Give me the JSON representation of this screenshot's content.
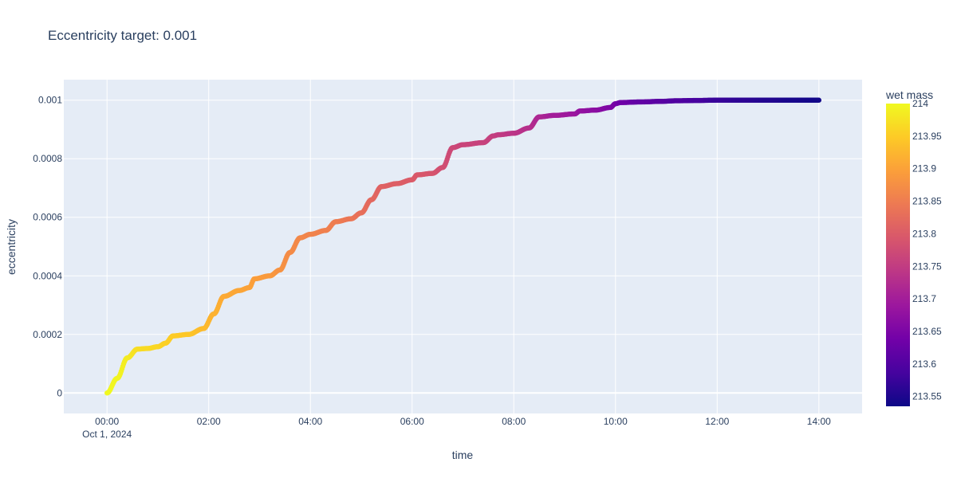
{
  "chart_data": {
    "type": "scatter",
    "title": "Eccentricity target: 0.001",
    "xlabel": "time",
    "ylabel": "eccentricity",
    "x_range_hours": [
      -0.85,
      14.85
    ],
    "ylim": [
      -7e-05,
      0.00107
    ],
    "grid": true,
    "x_ticks": [
      {
        "value": 0,
        "label": "00:00",
        "sublabel": "Oct 1, 2024"
      },
      {
        "value": 2,
        "label": "02:00",
        "sublabel": ""
      },
      {
        "value": 4,
        "label": "04:00",
        "sublabel": ""
      },
      {
        "value": 6,
        "label": "06:00",
        "sublabel": ""
      },
      {
        "value": 8,
        "label": "08:00",
        "sublabel": ""
      },
      {
        "value": 10,
        "label": "10:00",
        "sublabel": ""
      },
      {
        "value": 12,
        "label": "12:00",
        "sublabel": ""
      },
      {
        "value": 14,
        "label": "14:00",
        "sublabel": ""
      }
    ],
    "y_ticks": [
      {
        "value": 0,
        "label": "0"
      },
      {
        "value": 0.0002,
        "label": "0.0002"
      },
      {
        "value": 0.0004,
        "label": "0.0004"
      },
      {
        "value": 0.0006,
        "label": "0.0006"
      },
      {
        "value": 0.0008,
        "label": "0.0008"
      },
      {
        "value": 0.001,
        "label": "0.001"
      }
    ],
    "color_axis": {
      "title": "wet mass",
      "min": 213.535,
      "max": 214.0,
      "colorscale": [
        "#0d0887",
        "#46039f",
        "#7201a8",
        "#9c179e",
        "#bd3786",
        "#d8576b",
        "#ed7953",
        "#fb9f3a",
        "#fdca26",
        "#f0f921"
      ],
      "ticks": [
        {
          "value": 214,
          "label": "214"
        },
        {
          "value": 213.95,
          "label": "213.95"
        },
        {
          "value": 213.9,
          "label": "213.9"
        },
        {
          "value": 213.85,
          "label": "213.85"
        },
        {
          "value": 213.8,
          "label": "213.8"
        },
        {
          "value": 213.75,
          "label": "213.75"
        },
        {
          "value": 213.7,
          "label": "213.7"
        },
        {
          "value": 213.65,
          "label": "213.65"
        },
        {
          "value": 213.6,
          "label": "213.6"
        },
        {
          "value": 213.55,
          "label": "213.55"
        }
      ]
    },
    "series": [
      {
        "x_hours": [
          0,
          0.2,
          0.4,
          0.6,
          0.8,
          1.0,
          1.15,
          1.3,
          1.6,
          1.9,
          2.1,
          2.3,
          2.6,
          2.8,
          2.9,
          3.2,
          3.4,
          3.6,
          3.8,
          4.0,
          4.3,
          4.5,
          4.8,
          5.0,
          5.2,
          5.4,
          5.7,
          6.0,
          6.1,
          6.4,
          6.6,
          6.8,
          7.0,
          7.4,
          7.6,
          7.7,
          8.0,
          8.3,
          8.5,
          8.8,
          9.2,
          9.3,
          9.6,
          9.9,
          10.0,
          10.1,
          10.5,
          10.9,
          11.2,
          11.6,
          12.0,
          12.5,
          13.0,
          13.5,
          14.0
        ],
        "y": [
          0,
          5e-05,
          0.00012,
          0.00015,
          0.000152,
          0.000158,
          0.00017,
          0.000195,
          0.0002,
          0.00022,
          0.00027,
          0.00033,
          0.00035,
          0.00036,
          0.00039,
          0.0004,
          0.00042,
          0.00048,
          0.00053,
          0.000542,
          0.000555,
          0.000585,
          0.000595,
          0.000615,
          0.00066,
          0.000705,
          0.000715,
          0.000728,
          0.000745,
          0.00075,
          0.00077,
          0.000838,
          0.000848,
          0.000855,
          0.000878,
          0.000882,
          0.000887,
          0.000905,
          0.000943,
          0.000948,
          0.000953,
          0.000963,
          0.000966,
          0.000975,
          0.000988,
          0.000992,
          0.000994,
          0.000996,
          0.000998,
          0.000999,
          0.001,
          0.001,
          0.001,
          0.001,
          0.001
        ],
        "wet_mass": [
          214.0,
          213.995,
          213.985,
          213.97,
          213.966,
          213.962,
          213.955,
          213.95,
          213.945,
          213.93,
          213.92,
          213.91,
          213.905,
          213.9,
          213.895,
          213.89,
          213.88,
          213.87,
          213.865,
          213.86,
          213.855,
          213.85,
          213.84,
          213.83,
          213.82,
          213.81,
          213.805,
          213.8,
          213.795,
          213.79,
          213.78,
          213.77,
          213.765,
          213.76,
          213.755,
          213.75,
          213.74,
          213.73,
          213.715,
          213.7,
          213.69,
          213.68,
          213.67,
          213.655,
          213.645,
          213.635,
          213.62,
          213.61,
          213.6,
          213.59,
          213.575,
          213.565,
          213.555,
          213.545,
          213.54
        ]
      }
    ]
  }
}
